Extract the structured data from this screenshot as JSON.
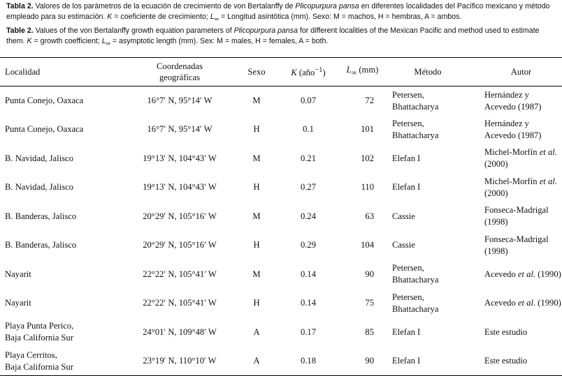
{
  "caption_es": {
    "prefix": "Tabla 2.",
    "text_a": " Valores de los parámetros de la ecuación de crecimiento de von Bertalanffy de ",
    "species": "Plicopurpura pansa",
    "text_b": " en diferentes localidades del Pacífico mexicano y método empleado para su estimación. ",
    "k_sym": "K",
    "text_c": " = coeficiente de crecimiento; ",
    "l_sym": "L",
    "l_sub": "∞",
    "text_d": " = Longitud asintótica (mm). Sexo: M = machos, H = hembras, A = ambos."
  },
  "caption_en": {
    "prefix": "Table 2.",
    "text_a": " Values of the von Bertalanffy growth equation parameters of ",
    "species": "Plicopurpura pansa",
    "text_b": " for different localities of the Mexican Pacific and method used to estimate them. ",
    "k_sym": "K",
    "text_c": " = growth coefficient; ",
    "l_sym": "L",
    "l_sub": "∞",
    "text_d": " = asymptotic length (mm). Sex: M = males, H = females, A = both."
  },
  "headers": {
    "localidad": "Localidad",
    "coord_1": "Coordenadas",
    "coord_2": "geográficas",
    "sexo": "Sexo",
    "k_sym": "K",
    "k_unit": " (año",
    "k_exp": "−1",
    "k_close": ")",
    "l_sym": "L",
    "l_sub": "∞",
    "l_unit": " (mm)",
    "metodo": "Método",
    "autor": "Autor"
  },
  "rows": [
    {
      "loc1": "Punta Conejo, Oaxaca",
      "loc2": "",
      "coord": "16°7′ N, 95°14′ W",
      "sexo": "M",
      "k": "0.07",
      "l": "72",
      "met1": "Petersen,",
      "met2": "Bhattacharya",
      "aut_pre": "Hernández y",
      "aut_it": "",
      "aut_post": "",
      "aut2": "Acevedo (1987)"
    },
    {
      "loc1": "Punta Conejo, Oaxaca",
      "loc2": "",
      "coord": "16°7′ N, 95°14′ W",
      "sexo": "H",
      "k": "0.1",
      "l": "101",
      "met1": "Petersen,",
      "met2": "Bhattacharya",
      "aut_pre": "Hernández y",
      "aut_it": "",
      "aut_post": "",
      "aut2": "Acevedo (1987)"
    },
    {
      "loc1": "B. Navidad, Jalisco",
      "loc2": "",
      "coord": "19°13′ N, 104°43′ W",
      "sexo": "M",
      "k": "0.21",
      "l": "102",
      "met1": "Elefan I",
      "met2": "",
      "aut_pre": "Michel-Morfín ",
      "aut_it": "et al.",
      "aut_post": "",
      "aut2": "(2000)"
    },
    {
      "loc1": "B. Navidad, Jalisco",
      "loc2": "",
      "coord": "19°13′ N, 104°43′ W",
      "sexo": "H",
      "k": "0.27",
      "l": "110",
      "met1": "Elefan I",
      "met2": "",
      "aut_pre": "Michel-Morfín ",
      "aut_it": "et al.",
      "aut_post": "",
      "aut2": "(2000)"
    },
    {
      "loc1": "B. Banderas, Jalisco",
      "loc2": "",
      "coord": "20°29′ N, 105°16′ W",
      "sexo": "M",
      "k": "0.24",
      "l": "63",
      "met1": "Cassie",
      "met2": "",
      "aut_pre": "Fonseca-Madrigal",
      "aut_it": "",
      "aut_post": "",
      "aut2": "(1998)"
    },
    {
      "loc1": "B. Banderas, Jalisco",
      "loc2": "",
      "coord": "20°29′ N, 105°16′ W",
      "sexo": "H",
      "k": "0.29",
      "l": "104",
      "met1": "Cassie",
      "met2": "",
      "aut_pre": "Fonseca-Madrigal",
      "aut_it": "",
      "aut_post": "",
      "aut2": "(1998)"
    },
    {
      "loc1": "Nayarit",
      "loc2": "",
      "coord": "22°22′ N, 105°41′ W",
      "sexo": "M",
      "k": "0.14",
      "l": "90",
      "met1": "Petersen,",
      "met2": "Bhattacharya",
      "aut_pre": "Acevedo ",
      "aut_it": "et al.",
      "aut_post": " (1990)",
      "aut2": ""
    },
    {
      "loc1": "Nayarit",
      "loc2": "",
      "coord": "22°22′ N, 105°41′ W",
      "sexo": "H",
      "k": "0.14",
      "l": "75",
      "met1": "Petersen,",
      "met2": "Bhattacharya",
      "aut_pre": "Acevedo ",
      "aut_it": "et al.",
      "aut_post": " (1990)",
      "aut2": ""
    },
    {
      "loc1": "Playa Punta Perico,",
      "loc2": "Baja California Sur",
      "coord": "24°01′ N, 109°48′ W",
      "sexo": "A",
      "k": "0.17",
      "l": "85",
      "met1": "Elefan I",
      "met2": "",
      "aut_pre": "Este estudio",
      "aut_it": "",
      "aut_post": "",
      "aut2": ""
    },
    {
      "loc1": "Playa Cerritos,",
      "loc2": "Baja California Sur",
      "coord": "23°19′ N, 110°10′ W",
      "sexo": "A",
      "k": "0.18",
      "l": "90",
      "met1": "Elefan I",
      "met2": "",
      "aut_pre": "Este estudio",
      "aut_it": "",
      "aut_post": "",
      "aut2": ""
    }
  ]
}
